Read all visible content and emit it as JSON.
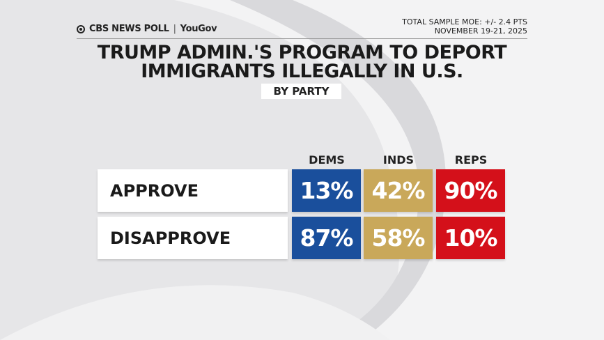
{
  "header": {
    "logo": "CBS NEWS POLL",
    "partner": "YouGov",
    "moe": "TOTAL SAMPLE MOE: +/- 2.4 PTS",
    "date": "NOVEMBER 19-21, 2025"
  },
  "title_lines": [
    "TRUMP ADMIN.'S PROGRAM TO DEPORT",
    "IMMIGRANTS ILLEGALLY IN U.S."
  ],
  "subtitle": "BY PARTY",
  "table": {
    "columns": [
      "DEMS",
      "INDS",
      "REPS"
    ],
    "rows": [
      {
        "label": "APPROVE",
        "cells": [
          "13%",
          "42%",
          "90%"
        ]
      },
      {
        "label": "DISAPPROVE",
        "cells": [
          "87%",
          "58%",
          "10%"
        ]
      }
    ]
  }
}
